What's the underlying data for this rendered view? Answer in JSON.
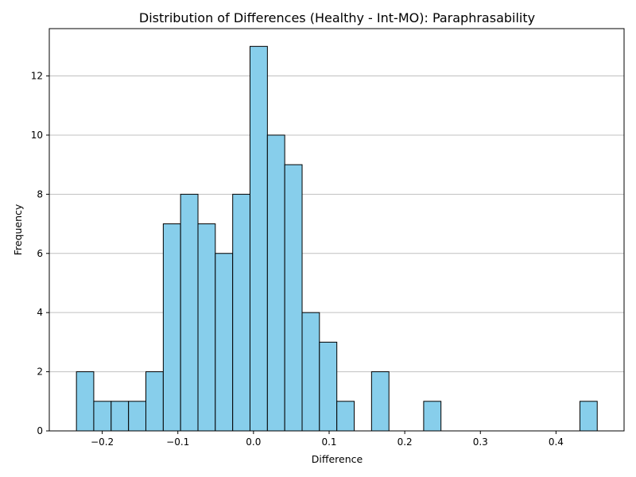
{
  "chart_data": {
    "type": "bar",
    "title": "Distribution of Differences (Healthy - Int-MO): Paraphrasability",
    "xlabel": "Difference",
    "ylabel": "Frequency",
    "xlim": [
      -0.27,
      0.49
    ],
    "ylim": [
      0,
      13.6
    ],
    "grid": "horizontal",
    "colors": {
      "bar_fill": "#87ceeb",
      "bar_edge": "#000000",
      "grid": "#c0c0c0"
    },
    "xticks": [
      {
        "value": -0.2,
        "label": "−0.2"
      },
      {
        "value": -0.1,
        "label": "−0.1"
      },
      {
        "value": 0.0,
        "label": "0.0"
      },
      {
        "value": 0.1,
        "label": "0.1"
      },
      {
        "value": 0.2,
        "label": "0.2"
      },
      {
        "value": 0.3,
        "label": "0.3"
      },
      {
        "value": 0.4,
        "label": "0.4"
      }
    ],
    "yticks": [
      {
        "value": 0,
        "label": "0"
      },
      {
        "value": 2,
        "label": "2"
      },
      {
        "value": 4,
        "label": "4"
      },
      {
        "value": 6,
        "label": "6"
      },
      {
        "value": 8,
        "label": "8"
      },
      {
        "value": 10,
        "label": "10"
      },
      {
        "value": 12,
        "label": "12"
      }
    ],
    "bins": [
      {
        "x0": -0.2341,
        "x1": -0.2112,
        "count": 2
      },
      {
        "x0": -0.2112,
        "x1": -0.1882,
        "count": 1
      },
      {
        "x0": -0.1882,
        "x1": -0.1652,
        "count": 1
      },
      {
        "x0": -0.1652,
        "x1": -0.1423,
        "count": 1
      },
      {
        "x0": -0.1423,
        "x1": -0.1193,
        "count": 2
      },
      {
        "x0": -0.1193,
        "x1": -0.0964,
        "count": 7
      },
      {
        "x0": -0.0964,
        "x1": -0.0734,
        "count": 8
      },
      {
        "x0": -0.0734,
        "x1": -0.0505,
        "count": 7
      },
      {
        "x0": -0.0505,
        "x1": -0.0275,
        "count": 6
      },
      {
        "x0": -0.0275,
        "x1": -0.0046,
        "count": 8
      },
      {
        "x0": -0.0046,
        "x1": 0.0184,
        "count": 13
      },
      {
        "x0": 0.0184,
        "x1": 0.0413,
        "count": 10
      },
      {
        "x0": 0.0413,
        "x1": 0.0643,
        "count": 9
      },
      {
        "x0": 0.0643,
        "x1": 0.0872,
        "count": 4
      },
      {
        "x0": 0.0872,
        "x1": 0.1102,
        "count": 3
      },
      {
        "x0": 0.1102,
        "x1": 0.1332,
        "count": 1
      },
      {
        "x0": 0.1332,
        "x1": 0.1561,
        "count": 0
      },
      {
        "x0": 0.1561,
        "x1": 0.1791,
        "count": 2
      },
      {
        "x0": 0.1791,
        "x1": 0.202,
        "count": 0
      },
      {
        "x0": 0.202,
        "x1": 0.225,
        "count": 0
      },
      {
        "x0": 0.225,
        "x1": 0.2479,
        "count": 1
      },
      {
        "x0": 0.2479,
        "x1": 0.2709,
        "count": 0
      },
      {
        "x0": 0.2709,
        "x1": 0.2938,
        "count": 0
      },
      {
        "x0": 0.2938,
        "x1": 0.3168,
        "count": 0
      },
      {
        "x0": 0.3168,
        "x1": 0.3397,
        "count": 0
      },
      {
        "x0": 0.3397,
        "x1": 0.3627,
        "count": 0
      },
      {
        "x0": 0.3627,
        "x1": 0.3857,
        "count": 0
      },
      {
        "x0": 0.3857,
        "x1": 0.4086,
        "count": 0
      },
      {
        "x0": 0.4086,
        "x1": 0.4316,
        "count": 0
      },
      {
        "x0": 0.4316,
        "x1": 0.4545,
        "count": 1
      }
    ]
  }
}
